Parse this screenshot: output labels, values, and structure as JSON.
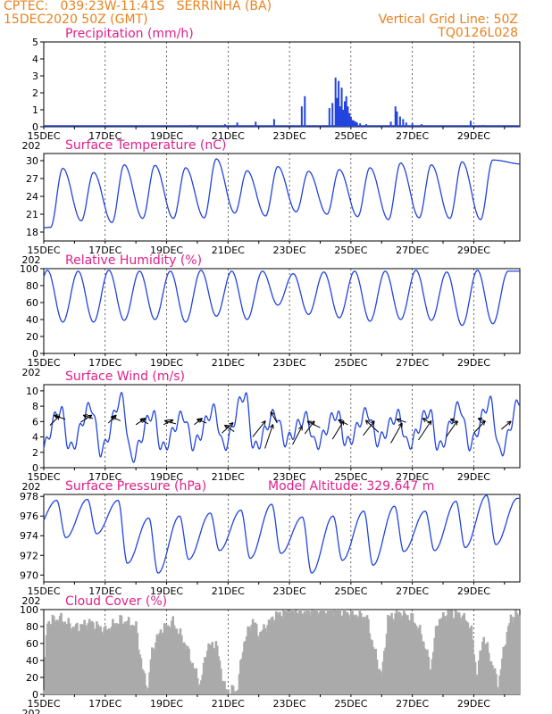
{
  "header": {
    "line1": "CPTEC:   039:23W-11:41S   SERRINHA (BA)",
    "line2": "15DEC2020 50Z (GMT)",
    "right1": "Vertical Grid Line: 50Z",
    "right2": "TQ0126L028"
  },
  "model_altitude": "Model Altitude: 329.647 m",
  "date_labels": [
    "15DEC",
    "17DEC",
    "19DEC",
    "21DEC",
    "23DEC",
    "25DEC",
    "27DEC",
    "29DEC"
  ],
  "year_stub": "202",
  "colors": {
    "line": "#2244dd",
    "cloud": "#aaaaaa",
    "grid": "#000000",
    "title": "#e0208a",
    "header": "#e8821e",
    "wind_vec": "#000000"
  },
  "chart_data": [
    {
      "type": "bar",
      "title": "Precipitation (mm/h)",
      "ylim": [
        0,
        5
      ],
      "yticks": [
        "0",
        "1",
        "2",
        "3",
        "4",
        "5"
      ],
      "x_days": [
        0,
        15.5
      ],
      "series": [
        {
          "points": [
            [
              4.8,
              0.1
            ],
            [
              5.9,
              0.15
            ],
            [
              6.3,
              0.25
            ],
            [
              6.9,
              0.3
            ],
            [
              7.5,
              0.45
            ],
            [
              8.4,
              1.2
            ],
            [
              8.5,
              1.8
            ],
            [
              9.3,
              1.1
            ],
            [
              9.4,
              1.4
            ],
            [
              9.5,
              2.9
            ],
            [
              9.55,
              1.7
            ],
            [
              9.6,
              2.7
            ],
            [
              9.65,
              1.2
            ],
            [
              9.7,
              2.3
            ],
            [
              9.75,
              1.0
            ],
            [
              9.8,
              1.5
            ],
            [
              9.85,
              1.8
            ],
            [
              9.9,
              1.2
            ],
            [
              9.95,
              0.8
            ],
            [
              10.0,
              0.6
            ],
            [
              10.05,
              0.4
            ],
            [
              10.1,
              0.35
            ],
            [
              10.15,
              0.3
            ],
            [
              10.2,
              0.25
            ],
            [
              10.3,
              0.2
            ],
            [
              10.5,
              0.15
            ],
            [
              11.3,
              0.3
            ],
            [
              11.45,
              1.2
            ],
            [
              11.5,
              0.9
            ],
            [
              11.6,
              0.6
            ],
            [
              11.7,
              0.45
            ],
            [
              11.8,
              0.25
            ],
            [
              12.0,
              0.2
            ],
            [
              12.3,
              0.15
            ],
            [
              13.9,
              0.35
            ],
            [
              14.3,
              0.1
            ]
          ]
        }
      ]
    },
    {
      "type": "line",
      "title": "Surface Temperature (nC)",
      "ylim": [
        16.5,
        31.2
      ],
      "yticks": [
        "18",
        "21",
        "24",
        "27",
        "30"
      ],
      "x_days": [
        0,
        15.5
      ],
      "series": [
        {
          "day_max": [
            28.7,
            28.0,
            29.3,
            29.2,
            28.8,
            30.3,
            28.3,
            29.0,
            28.2,
            28.5,
            28.8,
            29.6,
            29.3,
            29.8,
            30.1,
            29.4
          ],
          "day_min": [
            17.8,
            18.8,
            19.9,
            19.6,
            20.3,
            20.3,
            20.4,
            21.2,
            20.7,
            21.4,
            21.0,
            20.6,
            20.1,
            20.4,
            20.3,
            20.1
          ]
        }
      ]
    },
    {
      "type": "line",
      "title": "Relative Humidity (%)",
      "ylim": [
        0,
        100
      ],
      "yticks": [
        "0",
        "20",
        "40",
        "60",
        "80",
        "100"
      ],
      "x_days": [
        0,
        15.5
      ],
      "series": [
        {
          "day_max": [
            98,
            97,
            98,
            97,
            97,
            98,
            97,
            97,
            94,
            96,
            97,
            97,
            98,
            96,
            98,
            97
          ],
          "day_min": [
            40,
            37,
            37,
            39,
            40,
            37,
            44,
            40,
            57,
            46,
            42,
            38,
            40,
            39,
            33,
            35
          ]
        }
      ]
    },
    {
      "type": "line",
      "title": "Surface Wind (m/s)",
      "ylim": [
        0,
        10.8
      ],
      "yticks": [
        "0",
        "2",
        "4",
        "6",
        "8",
        "10"
      ],
      "x_days": [
        0,
        15.5
      ],
      "series": [
        {
          "day_max": [
            7.5,
            8.0,
            9.0,
            7.0,
            6.8,
            7.5,
            9.5,
            7.0,
            6.5,
            7.0,
            7.2,
            6.8,
            7.3,
            8.0,
            8.5,
            9.0
          ],
          "day_min": [
            1.8,
            2.5,
            2.2,
            1.3,
            2.5,
            3.0,
            2.8,
            2.6,
            3.5,
            3.0,
            3.2,
            3.5,
            3.0,
            2.6,
            3.0,
            2.0
          ]
        }
      ],
      "vectors": [
        [
          0.2,
          5.5,
          0.6,
          1.2
        ],
        [
          0.7,
          6.3,
          -0.7,
          0.5
        ],
        [
          1.2,
          5.9,
          0.7,
          0.9
        ],
        [
          1.6,
          6.4,
          -0.6,
          0.4
        ],
        [
          2.1,
          5.8,
          0.5,
          1.0
        ],
        [
          2.5,
          6.1,
          -0.6,
          0.5
        ],
        [
          3.0,
          5.6,
          0.6,
          0.8
        ],
        [
          3.4,
          5.7,
          -0.5,
          0.6
        ],
        [
          3.9,
          5.6,
          0.6,
          0.6
        ],
        [
          4.3,
          5.7,
          -0.7,
          0.4
        ],
        [
          4.9,
          5.6,
          0.5,
          0.8
        ],
        [
          5.3,
          5.8,
          -0.6,
          0.5
        ],
        [
          5.8,
          4.5,
          0.7,
          1.3
        ],
        [
          6.2,
          4.7,
          -0.6,
          0.8
        ],
        [
          6.8,
          4.0,
          0.8,
          2.0
        ],
        [
          7.2,
          2.5,
          0.5,
          3.0
        ],
        [
          7.6,
          5.8,
          -0.4,
          1.4
        ],
        [
          8.1,
          3.0,
          0.6,
          2.3
        ],
        [
          8.5,
          4.4,
          0.6,
          1.6
        ],
        [
          9.0,
          5.2,
          -0.8,
          0.8
        ],
        [
          9.4,
          3.7,
          0.7,
          2.3
        ],
        [
          9.9,
          5.6,
          -0.6,
          0.6
        ],
        [
          10.4,
          4.2,
          0.7,
          1.8
        ],
        [
          10.9,
          4.6,
          -0.8,
          1.5
        ],
        [
          11.3,
          3.2,
          0.7,
          2.5
        ],
        [
          11.8,
          5.9,
          -0.6,
          0.4
        ],
        [
          12.2,
          3.6,
          0.8,
          2.4
        ],
        [
          12.6,
          5.8,
          -0.5,
          0.6
        ],
        [
          13.1,
          4.0,
          0.7,
          2.0
        ],
        [
          13.5,
          5.9,
          -0.5,
          0.4
        ],
        [
          14.0,
          4.5,
          0.7,
          1.5
        ],
        [
          14.4,
          6.0,
          -0.5,
          0.4
        ],
        [
          14.9,
          5.0,
          0.6,
          1.0
        ]
      ]
    },
    {
      "type": "line",
      "title": "Surface Pressure (hPa)",
      "ylim": [
        969.3,
        978.2
      ],
      "yticks": [
        "970",
        "972",
        "974",
        "976",
        "978"
      ],
      "x_days": [
        0,
        15.5
      ],
      "series": [
        {
          "day_max": [
            977.6,
            977.7,
            977.6,
            975.8,
            976.0,
            976.3,
            976.6,
            977.2,
            975.9,
            976.0,
            976.5,
            977.0,
            976.5,
            977.5,
            978.1,
            977.8
          ],
          "day_min": [
            974.5,
            973.8,
            974.2,
            971.2,
            970.2,
            971.6,
            972.5,
            971.7,
            972.2,
            970.2,
            971.5,
            971.0,
            972.4,
            972.5,
            972.8,
            973.1
          ]
        }
      ]
    },
    {
      "type": "area",
      "title": "Cloud Cover (%)",
      "ylim": [
        0,
        100
      ],
      "yticks": [
        "0",
        "20",
        "40",
        "60",
        "80",
        "100"
      ],
      "x_days": [
        0,
        15.5
      ],
      "series": [
        {
          "profile": [
            [
              0,
              5
            ],
            [
              0.1,
              85
            ],
            [
              0.5,
              90
            ],
            [
              1.0,
              78
            ],
            [
              1.5,
              85
            ],
            [
              2.0,
              75
            ],
            [
              2.5,
              88
            ],
            [
              3.0,
              80
            ],
            [
              3.2,
              30
            ],
            [
              3.4,
              5
            ],
            [
              3.5,
              50
            ],
            [
              3.8,
              75
            ],
            [
              4.2,
              85
            ],
            [
              4.6,
              60
            ],
            [
              4.9,
              30
            ],
            [
              5.1,
              10
            ],
            [
              5.3,
              55
            ],
            [
              5.6,
              60
            ],
            [
              5.9,
              5
            ],
            [
              6.3,
              5
            ],
            [
              6.5,
              60
            ],
            [
              6.8,
              88
            ],
            [
              7.0,
              70
            ],
            [
              7.5,
              92
            ],
            [
              8.0,
              100
            ],
            [
              8.5,
              98
            ],
            [
              9.0,
              100
            ],
            [
              9.5,
              100
            ],
            [
              10.0,
              95
            ],
            [
              10.5,
              92
            ],
            [
              10.7,
              60
            ],
            [
              11.0,
              20
            ],
            [
              11.2,
              90
            ],
            [
              11.6,
              96
            ],
            [
              12.0,
              90
            ],
            [
              12.3,
              70
            ],
            [
              12.6,
              30
            ],
            [
              12.8,
              85
            ],
            [
              13.2,
              97
            ],
            [
              13.6,
              93
            ],
            [
              13.9,
              80
            ],
            [
              14.1,
              20
            ],
            [
              14.3,
              70
            ],
            [
              14.6,
              35
            ],
            [
              14.8,
              10
            ],
            [
              15.0,
              60
            ],
            [
              15.2,
              90
            ],
            [
              15.4,
              95
            ],
            [
              15.5,
              90
            ]
          ]
        }
      ]
    }
  ]
}
